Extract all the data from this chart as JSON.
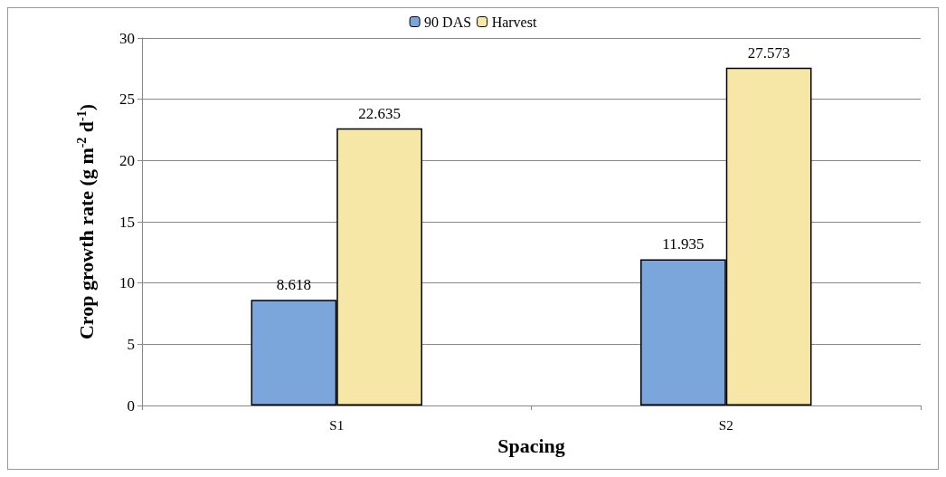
{
  "chart_data": {
    "type": "bar",
    "xlabel": "Spacing",
    "ylabel": "Crop growth rate (g m$^{-2}$ d$^{-1}$)",
    "categories": [
      "S1",
      "S2"
    ],
    "series": [
      {
        "name": "90 DAS",
        "color": "#7aa6dc",
        "values": [
          8.618,
          11.935
        ]
      },
      {
        "name": "Harvest",
        "color": "#f6e7a6",
        "values": [
          22.635,
          27.573
        ]
      }
    ],
    "ylim": [
      0,
      30
    ],
    "yticks": [
      0,
      5,
      10,
      15,
      20,
      25,
      30
    ],
    "grid": "y",
    "legend": "top",
    "data_labels": true
  }
}
